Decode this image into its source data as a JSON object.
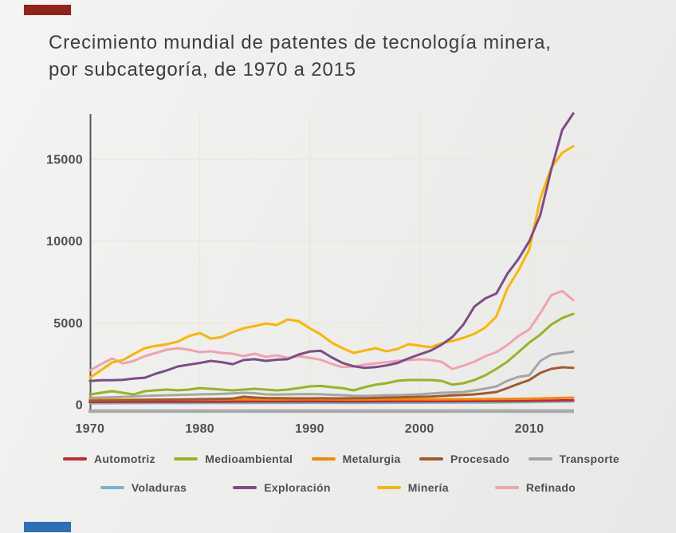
{
  "page": {
    "title_line1": "Crecimiento mundial de patentes de tecnología minera,",
    "title_line2": "por subcategoría, de 1970 a 2015",
    "accents": {
      "top_bar_color": "#96201d",
      "bottom_bar_color": "#2e6fb7"
    }
  },
  "chart_data": {
    "type": "line",
    "title": "Crecimiento mundial de patentes de tecnología minera, por subcategoría, de 1970 a 2015",
    "xlabel": "",
    "ylabel": "",
    "xlim": [
      1970,
      2015
    ],
    "ylim": [
      0,
      18000
    ],
    "grid": true,
    "gridline_color": "#ece9d8",
    "axis_color": "#575757",
    "baseline_color": "#a9a9a9",
    "tick_label_color": "#4f4f4f",
    "legend_position": "bottom",
    "x_ticks": [
      1970,
      1980,
      1990,
      2000,
      2010
    ],
    "y_ticks": [
      0,
      5000,
      10000,
      15000
    ],
    "x": [
      1970,
      1971,
      1972,
      1973,
      1974,
      1975,
      1976,
      1977,
      1978,
      1979,
      1980,
      1981,
      1982,
      1983,
      1984,
      1985,
      1986,
      1987,
      1988,
      1989,
      1990,
      1991,
      1992,
      1993,
      1994,
      1995,
      1996,
      1997,
      1998,
      1999,
      2000,
      2001,
      2002,
      2003,
      2004,
      2005,
      2006,
      2007,
      2008,
      2009,
      2010,
      2011,
      2012,
      2013,
      2014
    ],
    "draw_order": [
      "Voladuras",
      "Automotriz",
      "Metalurgia",
      "Procesado",
      "Transporte",
      "Medioambiental",
      "Refinado",
      "Minería",
      "Exploración"
    ],
    "series": [
      {
        "name": "Automotriz",
        "color": "#c32b33",
        "values": [
          170,
          172,
          175,
          175,
          178,
          180,
          182,
          185,
          185,
          188,
          190,
          192,
          192,
          195,
          195,
          198,
          198,
          200,
          200,
          202,
          205,
          205,
          202,
          200,
          200,
          202,
          205,
          208,
          210,
          212,
          215,
          215,
          218,
          220,
          222,
          225,
          228,
          232,
          236,
          240,
          245,
          252,
          260,
          268,
          275
        ]
      },
      {
        "name": "Medioambiental",
        "color": "#95b524",
        "values": [
          630,
          730,
          830,
          730,
          630,
          830,
          880,
          925,
          880,
          925,
          1020,
          975,
          925,
          875,
          925,
          975,
          925,
          875,
          925,
          1020,
          1120,
          1150,
          1070,
          1020,
          875,
          1070,
          1220,
          1315,
          1460,
          1510,
          1510,
          1510,
          1460,
          1220,
          1315,
          1510,
          1800,
          2190,
          2630,
          3210,
          3800,
          4290,
          4900,
          5300,
          5550
        ]
      },
      {
        "name": "Metalurgia",
        "color": "#ef8b00",
        "values": [
          290,
          295,
          300,
          300,
          305,
          310,
          310,
          315,
          315,
          320,
          325,
          325,
          330,
          330,
          325,
          325,
          320,
          320,
          325,
          330,
          335,
          330,
          325,
          320,
          315,
          320,
          320,
          325,
          330,
          335,
          330,
          325,
          330,
          335,
          335,
          340,
          345,
          350,
          355,
          360,
          370,
          385,
          400,
          420,
          435
        ]
      },
      {
        "name": "Procesado",
        "color": "#9e5b30",
        "values": [
          245,
          250,
          260,
          270,
          280,
          290,
          300,
          310,
          320,
          330,
          340,
          350,
          360,
          380,
          485,
          440,
          410,
          400,
          395,
          390,
          390,
          395,
          390,
          390,
          400,
          410,
          420,
          440,
          460,
          470,
          485,
          500,
          535,
          570,
          600,
          635,
          700,
          780,
          1020,
          1270,
          1510,
          1950,
          2190,
          2290,
          2250
        ]
      },
      {
        "name": "Transporte",
        "color": "#a5a5a5",
        "values": [
          420,
          440,
          460,
          480,
          500,
          535,
          560,
          580,
          600,
          615,
          635,
          650,
          660,
          690,
          730,
          705,
          635,
          620,
          635,
          645,
          655,
          640,
          610,
          585,
          550,
          535,
          560,
          585,
          585,
          610,
          635,
          680,
          730,
          750,
          780,
          875,
          990,
          1120,
          1460,
          1700,
          1800,
          2680,
          3070,
          3150,
          3250
        ]
      },
      {
        "name": "Voladuras",
        "color": "#79b0cc",
        "values": [
          90,
          92,
          94,
          95,
          96,
          98,
          100,
          100,
          102,
          104,
          105,
          106,
          108,
          108,
          110,
          110,
          112,
          112,
          114,
          115,
          116,
          116,
          115,
          114,
          114,
          115,
          116,
          118,
          120,
          122,
          124,
          125,
          126,
          128,
          130,
          134,
          138,
          142,
          148,
          154,
          160,
          170,
          180,
          190,
          200
        ]
      },
      {
        "name": "Exploración",
        "color": "#7c4d85",
        "values": [
          1450,
          1500,
          1500,
          1520,
          1600,
          1650,
          1900,
          2100,
          2340,
          2450,
          2550,
          2680,
          2600,
          2480,
          2730,
          2780,
          2680,
          2750,
          2780,
          3070,
          3250,
          3300,
          2900,
          2550,
          2350,
          2250,
          2300,
          2400,
          2550,
          2830,
          3075,
          3300,
          3660,
          4140,
          4900,
          6000,
          6500,
          6800,
          8000,
          8900,
          10000,
          11600,
          14400,
          16800,
          17800
        ]
      },
      {
        "name": "Minería",
        "color": "#f9b602",
        "values": [
          1650,
          2100,
          2580,
          2730,
          3100,
          3460,
          3600,
          3700,
          3850,
          4190,
          4385,
          4040,
          4140,
          4435,
          4680,
          4800,
          4970,
          4870,
          5210,
          5110,
          4680,
          4300,
          3800,
          3460,
          3165,
          3310,
          3460,
          3265,
          3410,
          3700,
          3610,
          3510,
          3755,
          3900,
          4090,
          4335,
          4725,
          5400,
          7100,
          8200,
          9500,
          12600,
          14500,
          15400,
          15800
        ]
      },
      {
        "name": "Refinado",
        "color": "#efa3ae",
        "values": [
          2095,
          2480,
          2825,
          2530,
          2680,
          2970,
          3165,
          3360,
          3460,
          3360,
          3215,
          3265,
          3165,
          3115,
          2970,
          3115,
          2920,
          3020,
          2870,
          2970,
          2870,
          2750,
          2500,
          2300,
          2340,
          2450,
          2530,
          2600,
          2680,
          2730,
          2775,
          2730,
          2630,
          2180,
          2385,
          2630,
          2970,
          3215,
          3650,
          4190,
          4600,
          5600,
          6700,
          6950,
          6400
        ]
      }
    ]
  }
}
